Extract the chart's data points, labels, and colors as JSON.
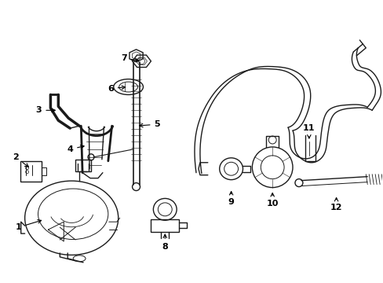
{
  "background_color": "#ffffff",
  "line_color": "#1a1a1a",
  "figsize": [
    4.89,
    3.6
  ],
  "dpi": 100,
  "lw": 1.0
}
